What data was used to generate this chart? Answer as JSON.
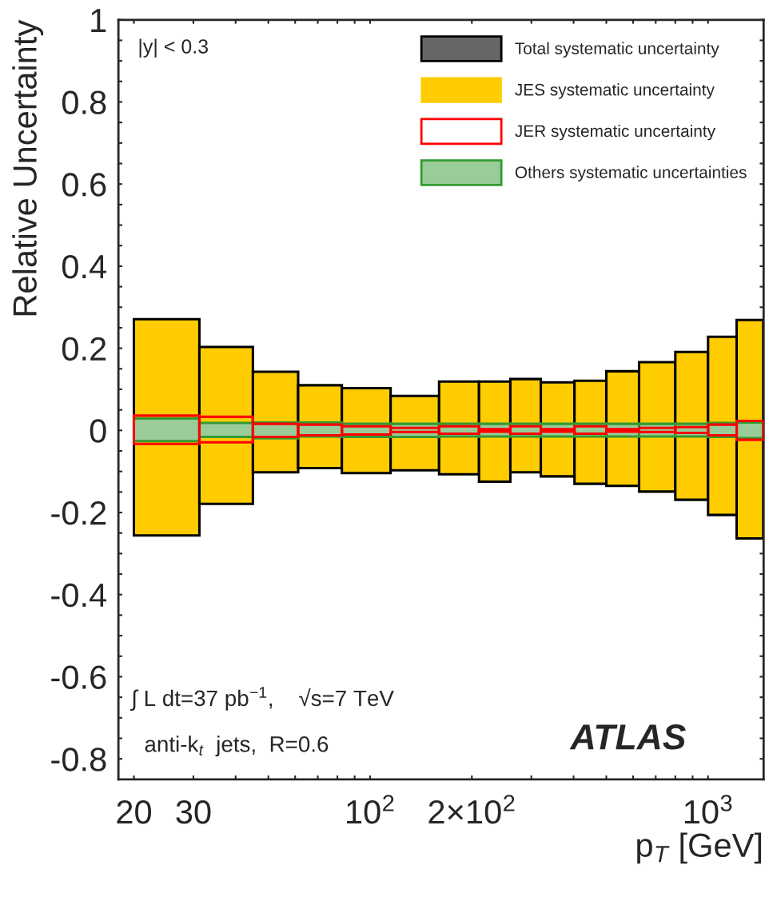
{
  "chart_data": {
    "type": "bar",
    "xlabel": "p$_{T}$ [GeV]",
    "ylabel": "Relative Uncertainty",
    "log": "x",
    "xlim": [
      18,
      1460
    ],
    "ylim": [
      -0.85,
      1
    ],
    "xticks": [
      20,
      30,
      {
        "value": 40,
        "label": null
      },
      {
        "value": 50,
        "label": null
      },
      {
        "value": 60,
        "label": null
      },
      {
        "value": 70,
        "label": null
      },
      {
        "value": 80,
        "label": null
      },
      {
        "value": 90,
        "label": null
      },
      {
        "value": 100,
        "label": "10$^{2}$"
      },
      {
        "value": 200,
        "label": "2×10$^{2}$"
      },
      {
        "value": 300,
        "label": null
      },
      {
        "value": 400,
        "label": null
      },
      {
        "value": 500,
        "label": null
      },
      {
        "value": 600,
        "label": null
      },
      {
        "value": 700,
        "label": null
      },
      {
        "value": 800,
        "label": null
      },
      {
        "value": 900,
        "label": null
      },
      {
        "value": 1000,
        "label": "10$^{3}$"
      }
    ],
    "yticks": [
      -0.8,
      {
        "value": -0.75,
        "label": null
      },
      {
        "value": -0.7,
        "label": null
      },
      {
        "value": -0.65,
        "label": null
      },
      -0.6,
      {
        "value": -0.55,
        "label": null
      },
      {
        "value": -0.5,
        "label": null
      },
      {
        "value": -0.45,
        "label": null
      },
      -0.4,
      {
        "value": -0.35,
        "label": null
      },
      {
        "value": -0.3,
        "label": null
      },
      {
        "value": -0.25,
        "label": null
      },
      -0.2,
      {
        "value": -0.15,
        "label": null
      },
      {
        "value": -0.1,
        "label": null
      },
      {
        "value": -0.05,
        "label": null
      },
      0,
      {
        "value": 0.05,
        "label": null
      },
      {
        "value": 0.1,
        "label": null
      },
      {
        "value": 0.15,
        "label": null
      },
      0.2,
      {
        "value": 0.25,
        "label": null
      },
      {
        "value": 0.3,
        "label": null
      },
      {
        "value": 0.35,
        "label": null
      },
      0.4,
      {
        "value": 0.45,
        "label": null
      },
      {
        "value": 0.5,
        "label": null
      },
      {
        "value": 0.55,
        "label": null
      },
      0.6,
      {
        "value": 0.65,
        "label": null
      },
      {
        "value": 0.7,
        "label": null
      },
      {
        "value": 0.75,
        "label": null
      },
      0.8,
      {
        "value": 0.85,
        "label": null
      },
      {
        "value": 0.9,
        "label": null
      },
      {
        "value": 0.95,
        "label": null
      },
      1
    ],
    "grid": false,
    "legend": "top right",
    "x": [
      25,
      37.5,
      52.5,
      70,
      95,
      135,
      185,
      235,
      285,
      355,
      450,
      550,
      700,
      900,
      1100,
      1330
    ],
    "series": [
      {
        "name": "Total systematic uncertainty",
        "color": "#000000",
        "values": [
          null,
          null,
          null,
          null,
          null,
          null,
          null,
          null,
          null,
          null,
          null,
          null,
          null,
          null,
          null,
          null
        ]
      },
      {
        "name": "JES systematic uncertainty",
        "color": "#ffcc00",
        "values": [
          0.527,
          0.382,
          0.245,
          0.202,
          0.207,
          0.181,
          0.226,
          0.244,
          0.227,
          0.229,
          0.251,
          0.279,
          0.315,
          0.36,
          0.434,
          0.532
        ],
        "base": [
          -0.256,
          -0.179,
          -0.102,
          -0.092,
          -0.104,
          -0.097,
          -0.107,
          -0.125,
          -0.102,
          -0.112,
          -0.13,
          -0.135,
          -0.149,
          -0.169,
          -0.206,
          -0.263
        ]
      },
      {
        "name": "JER systematic uncertainty",
        "color": "#ff0000",
        "values": [
          0.069,
          0.062,
          0.032,
          0.026,
          0.02,
          0.01,
          0.018,
          0.006,
          0.018,
          0.006,
          0.018,
          0.006,
          0.01,
          0.014,
          0.026,
          0.046
        ],
        "base": [
          -0.033,
          -0.029,
          -0.016,
          -0.012,
          -0.01,
          -0.004,
          -0.008,
          -0.003,
          -0.008,
          -0.003,
          -0.008,
          -0.003,
          -0.004,
          -0.006,
          -0.012,
          -0.023
        ]
      },
      {
        "name": "Others systematic uncertainties",
        "color": "#339933",
        "values": [
          0.055,
          0.034,
          0.038,
          0.034,
          0.032,
          0.032,
          0.031,
          0.031,
          0.031,
          0.031,
          0.031,
          0.031,
          0.031,
          0.031,
          0.034,
          0.038
        ],
        "base": [
          -0.026,
          -0.016,
          -0.019,
          -0.015,
          -0.016,
          -0.016,
          -0.015,
          -0.015,
          -0.015,
          -0.015,
          -0.015,
          -0.015,
          -0.015,
          -0.015,
          -0.016,
          -0.019
        ]
      }
    ],
    "annotations": [
      "|y| < 0.3",
      "∫ L dt=37 pb$^{−1}$,    √s=7 TeV",
      "anti-k$_{t}$  jets,  R=0.6",
      "ATLAS"
    ]
  }
}
